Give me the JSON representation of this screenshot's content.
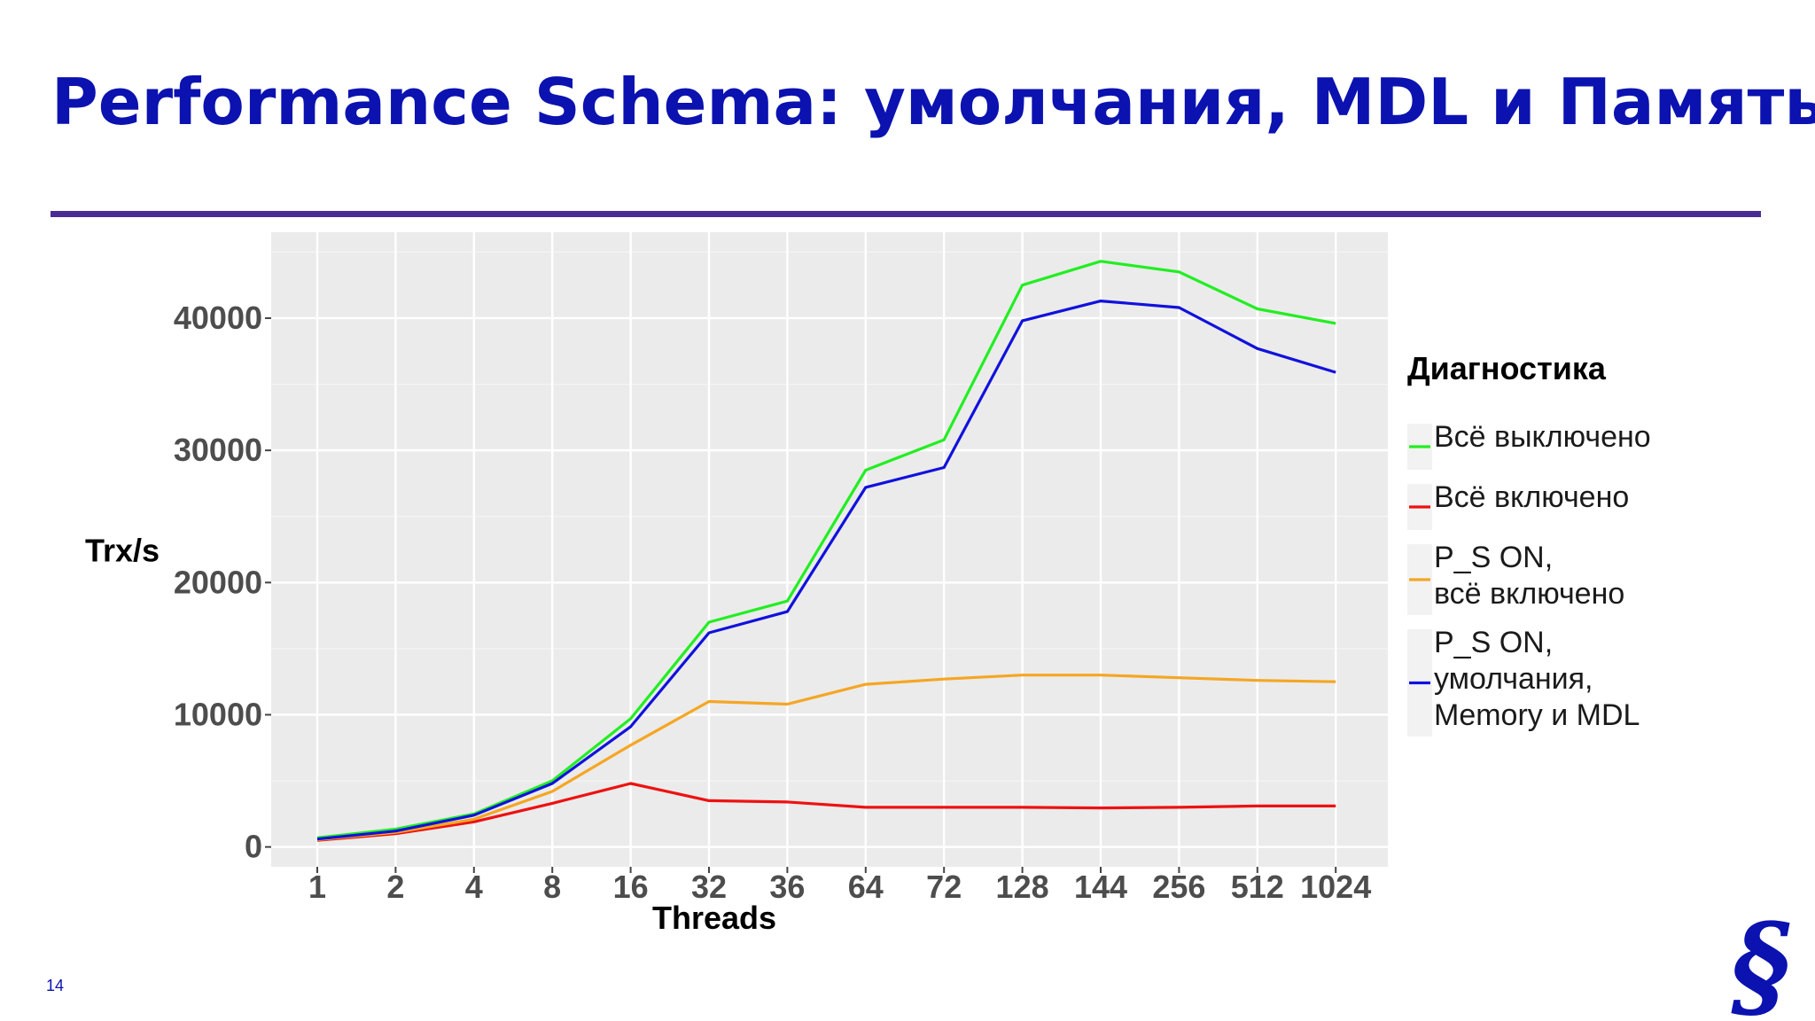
{
  "slide": {
    "title": "Performance Schema: умолчания, MDL и Память",
    "page_number": "14",
    "accent_color": "#0b12b0",
    "rule_color": "#4a2c95",
    "logo_icon": "section-sign-icon"
  },
  "chart_data": {
    "type": "line",
    "title": "",
    "xlabel": "Threads",
    "ylabel": "Trx/s",
    "x": [
      "1",
      "2",
      "4",
      "8",
      "16",
      "32",
      "36",
      "64",
      "72",
      "128",
      "144",
      "256",
      "512",
      "1024"
    ],
    "ylim": [
      -1500,
      46500
    ],
    "yticks": [
      0,
      10000,
      20000,
      30000,
      40000
    ],
    "grid": true,
    "panel_background": "#ebebeb",
    "legend": {
      "title": "Диагностика",
      "position": "right"
    },
    "series": [
      {
        "name": "Всё выключено",
        "name_lines": [
          "Всё выключено"
        ],
        "color": "#22ee22",
        "values": [
          700,
          1350,
          2500,
          5000,
          9700,
          17000,
          18600,
          28500,
          30800,
          42500,
          44300,
          43500,
          40700,
          39600
        ]
      },
      {
        "name": "Всё включено",
        "name_lines": [
          "Всё включено"
        ],
        "color": "#ee1111",
        "values": [
          500,
          1000,
          1900,
          3300,
          4800,
          3500,
          3400,
          3000,
          3000,
          3000,
          2950,
          3000,
          3100,
          3100
        ]
      },
      {
        "name": "P_S ON, всё включено",
        "name_lines": [
          "P_S ON,",
          "всё включено"
        ],
        "color": "#f5a623",
        "values": [
          550,
          1100,
          2100,
          4200,
          7700,
          11000,
          10800,
          12300,
          12700,
          13000,
          13000,
          12800,
          12600,
          12500
        ]
      },
      {
        "name": "P_S ON, умолчания, Memory и MDL",
        "name_lines": [
          "P_S ON,",
          "умолчания,",
          "Memory и MDL"
        ],
        "color": "#1111dd",
        "values": [
          600,
          1200,
          2400,
          4800,
          9100,
          16200,
          17800,
          27200,
          28700,
          39800,
          41300,
          40800,
          37700,
          35900
        ]
      }
    ]
  }
}
